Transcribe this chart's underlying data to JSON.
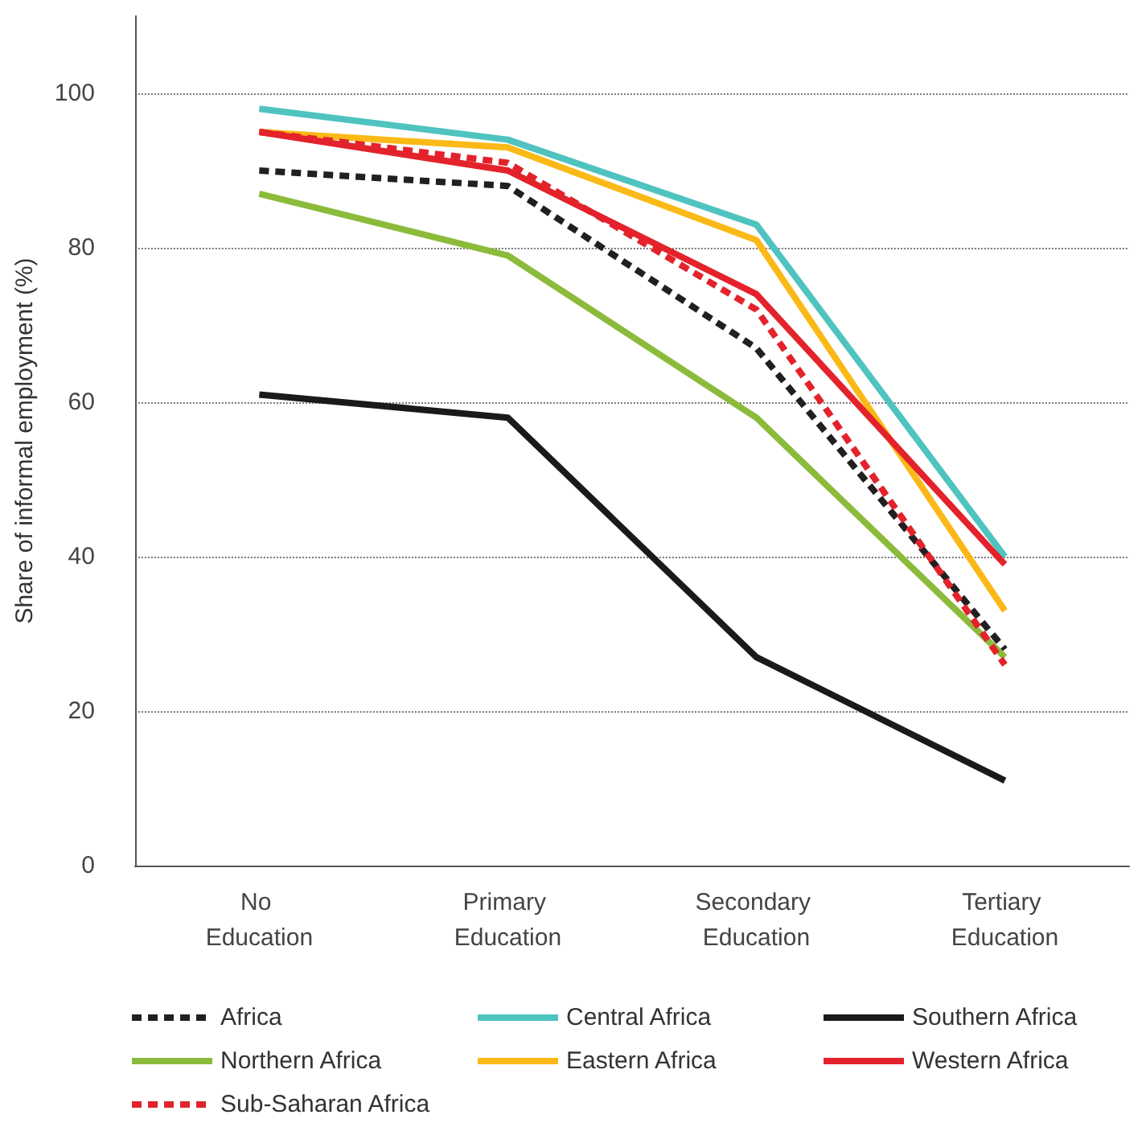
{
  "chart_data": {
    "type": "line",
    "ylabel": "Share of informal employment (%)",
    "categories": [
      "No Education",
      "Primary Education",
      "Secondary Education",
      "Tertiary Education"
    ],
    "ylim": [
      0,
      110
    ],
    "yticks": [
      0,
      20,
      40,
      60,
      80,
      100
    ],
    "grid": "y",
    "legend": "bottom",
    "marker": "none",
    "series": [
      {
        "name": "Africa",
        "color": "#231f20",
        "line_style": "dashed",
        "values": [
          90,
          88,
          67,
          28
        ]
      },
      {
        "name": "Central Africa",
        "color": "#4fc3c0",
        "line_style": "solid",
        "values": [
          98,
          94,
          83,
          40
        ]
      },
      {
        "name": "Southern Africa",
        "color": "#1a1a1a",
        "line_style": "solid",
        "values": [
          61,
          58,
          27,
          11
        ]
      },
      {
        "name": "Northern Africa",
        "color": "#8cbb3c",
        "line_style": "solid",
        "values": [
          87,
          79,
          58,
          27
        ]
      },
      {
        "name": "Eastern Africa",
        "color": "#fbb917",
        "line_style": "solid",
        "values": [
          95,
          93,
          81,
          33
        ]
      },
      {
        "name": "Western Africa",
        "color": "#e3222b",
        "line_style": "solid",
        "values": [
          95,
          90,
          74,
          39
        ]
      },
      {
        "name": "Sub-Saharan Africa",
        "color": "#e3222b",
        "line_style": "dashed",
        "values": [
          95,
          91,
          72,
          26
        ]
      }
    ]
  }
}
